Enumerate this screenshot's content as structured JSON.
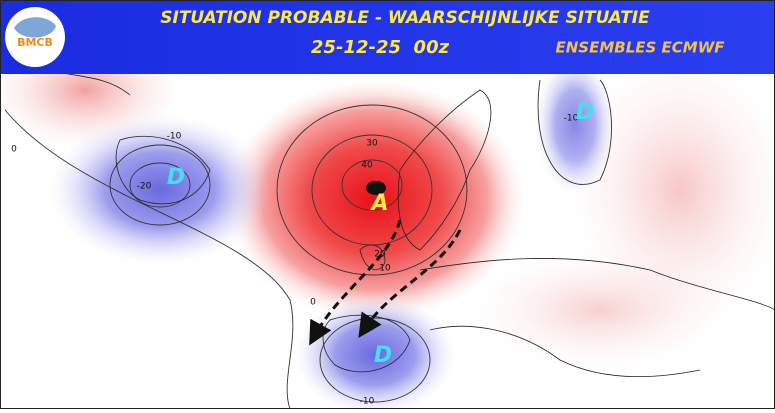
{
  "header": {
    "logo": "BMCB",
    "title": "SITUATION PROBABLE - WAARSCHIJNLIJKE SITUATIE",
    "date": "25-12-25  00z",
    "source": "ENSEMBLES ECMWF"
  },
  "map": {
    "pressure_centers": [
      {
        "label": "A"
      },
      {
        "label": "D"
      },
      {
        "label": "D"
      },
      {
        "label": "D"
      }
    ],
    "contour_labels": [
      30,
      40,
      20,
      10,
      0,
      -10,
      -20,
      0,
      -10,
      -10
    ]
  }
}
